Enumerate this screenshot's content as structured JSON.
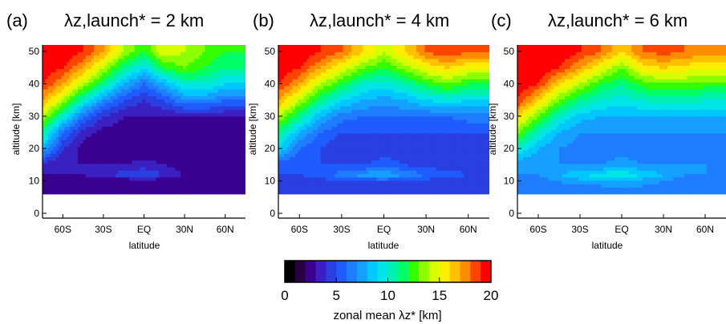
{
  "figure": {
    "colorbar_label": "zonal mean λz* [km]",
    "colorbar": {
      "min": 0,
      "max": 20,
      "step": 1,
      "ticks": [
        "0",
        "5",
        "10",
        "15",
        "20"
      ]
    },
    "colormap": [
      "#000000",
      "#2a0044",
      "#3a0090",
      "#3a20c0",
      "#2a3fe0",
      "#1f5cff",
      "#1f7dff",
      "#15a0ff",
      "#00c8ff",
      "#00e6e6",
      "#00f0b0",
      "#00ff66",
      "#33ff00",
      "#8cff00",
      "#d8ff00",
      "#ffee00",
      "#ffc000",
      "#ff8c00",
      "#ff4400",
      "#ff0000"
    ],
    "panels": [
      {
        "tag": "(a)",
        "title": "λz,launch* = 2 km",
        "xlabel": "latitude",
        "ylabel": "altitude [km]"
      },
      {
        "tag": "(b)",
        "title": "λz,launch* = 4 km",
        "xlabel": "latitude",
        "ylabel": "altitude [km]"
      },
      {
        "tag": "(c)",
        "title": "λz,launch* = 6 km",
        "xlabel": "latitude",
        "ylabel": "altitude [km]"
      }
    ]
  },
  "chart_data": [
    {
      "type": "heatmap",
      "title": "λz,launch* = 2 km",
      "xlabel": "latitude",
      "ylabel": "altitude [km]",
      "xlim": [
        -75,
        75
      ],
      "ylim": [
        0,
        52
      ],
      "xticks": [
        -60,
        -30,
        0,
        30,
        60
      ],
      "xticklabels": [
        "60S",
        "30S",
        "EQ",
        "30N",
        "60N"
      ],
      "yticks": [
        0,
        10,
        20,
        30,
        40,
        50
      ],
      "yticklabels": [
        "0",
        "10",
        "20",
        "30",
        "40",
        "50"
      ],
      "x": [
        -75,
        -60,
        -45,
        -30,
        -15,
        0,
        15,
        30,
        45,
        60,
        75
      ],
      "y": [
        6,
        10,
        12,
        15,
        20,
        25,
        30,
        35,
        40,
        45,
        50
      ],
      "z": [
        [
          2,
          2,
          2,
          2,
          2,
          2,
          2,
          2,
          2,
          2,
          2
        ],
        [
          2,
          2,
          2,
          2,
          2,
          2.5,
          2,
          2,
          2,
          2,
          2
        ],
        [
          3,
          3,
          3,
          4,
          4.5,
          5,
          4,
          3,
          2.5,
          2,
          3
        ],
        [
          3.5,
          3,
          3,
          3,
          3,
          3.5,
          3,
          2.5,
          2,
          2,
          2
        ],
        [
          8,
          4,
          2.5,
          2,
          2,
          2,
          2,
          2,
          2,
          2,
          2
        ],
        [
          11,
          6,
          3.5,
          2.5,
          2.5,
          2.5,
          2.5,
          2,
          2,
          2,
          2
        ],
        [
          14,
          10,
          6,
          4,
          3,
          3,
          3,
          3,
          3,
          3,
          3
        ],
        [
          17,
          14,
          10,
          7,
          5,
          4,
          5,
          7,
          7,
          6,
          6
        ],
        [
          19,
          17,
          14,
          11,
          8,
          6,
          8,
          10,
          10,
          9,
          9
        ],
        [
          20,
          19,
          17,
          14,
          11,
          9,
          12,
          13,
          12,
          11,
          11
        ],
        [
          20,
          20,
          19,
          17,
          14,
          12,
          15,
          14,
          13,
          12,
          12
        ]
      ]
    },
    {
      "type": "heatmap",
      "title": "λz,launch* = 4 km",
      "xlabel": "latitude",
      "ylabel": "altitude [km]",
      "xlim": [
        -75,
        75
      ],
      "ylim": [
        0,
        52
      ],
      "xticks": [
        -60,
        -30,
        0,
        30,
        60
      ],
      "xticklabels": [
        "60S",
        "30S",
        "EQ",
        "30N",
        "60N"
      ],
      "yticks": [
        0,
        10,
        20,
        30,
        40,
        50
      ],
      "yticklabels": [
        "0",
        "10",
        "20",
        "30",
        "40",
        "50"
      ],
      "x": [
        -75,
        -60,
        -45,
        -30,
        -15,
        0,
        15,
        30,
        45,
        60,
        75
      ],
      "y": [
        6,
        10,
        12,
        15,
        20,
        25,
        30,
        35,
        40,
        45,
        50
      ],
      "z": [
        [
          4,
          4,
          4,
          4,
          4,
          4,
          4,
          4,
          4,
          4,
          4
        ],
        [
          4.5,
          4.5,
          4.5,
          5,
          5,
          5,
          5,
          4.5,
          4.5,
          4.5,
          4.5
        ],
        [
          5,
          5,
          5.5,
          6.5,
          7.5,
          8,
          7,
          6,
          5.5,
          5,
          5
        ],
        [
          5,
          5,
          5,
          5,
          5,
          5.5,
          5,
          4.5,
          4.5,
          4.5,
          4.5
        ],
        [
          9,
          6,
          5,
          4,
          4,
          4.5,
          4.5,
          4.5,
          4.5,
          4.5,
          4.5
        ],
        [
          11,
          8,
          6,
          5,
          5,
          5,
          5,
          5,
          5,
          5,
          5
        ],
        [
          14,
          11,
          8,
          6.5,
          6,
          6,
          6,
          6,
          6,
          6.5,
          6.5
        ],
        [
          17,
          14,
          11,
          9,
          8,
          7.5,
          8,
          9,
          9.5,
          9,
          9
        ],
        [
          19,
          17,
          14,
          12,
          10,
          9.5,
          10.5,
          12,
          13,
          12,
          12
        ],
        [
          20,
          19,
          17,
          15,
          13,
          12,
          13.5,
          15,
          16,
          15,
          15
        ],
        [
          20,
          20,
          19,
          18,
          16,
          14,
          16,
          18,
          19,
          18,
          18
        ]
      ]
    },
    {
      "type": "heatmap",
      "title": "λz,launch* = 6 km",
      "xlabel": "latitude",
      "ylabel": "altitude [km]",
      "xlim": [
        -75,
        75
      ],
      "ylim": [
        0,
        52
      ],
      "xticks": [
        -60,
        -30,
        0,
        30,
        60
      ],
      "xticklabels": [
        "60S",
        "30S",
        "EQ",
        "30N",
        "60N"
      ],
      "yticks": [
        0,
        10,
        20,
        30,
        40,
        50
      ],
      "yticklabels": [
        "0",
        "10",
        "20",
        "30",
        "40",
        "50"
      ],
      "x": [
        -75,
        -60,
        -45,
        -30,
        -15,
        0,
        15,
        30,
        45,
        60,
        75
      ],
      "y": [
        6,
        10,
        12,
        15,
        20,
        25,
        30,
        35,
        40,
        45,
        50
      ],
      "z": [
        [
          6,
          6,
          6,
          6,
          6,
          6,
          6,
          6,
          6,
          6,
          6
        ],
        [
          6.5,
          6.5,
          7,
          7.5,
          7.5,
          8,
          7.5,
          7,
          6.5,
          6.5,
          6.5
        ],
        [
          7,
          7,
          8,
          9,
          9.5,
          10,
          9,
          8,
          7,
          7,
          7
        ],
        [
          7,
          7,
          7,
          7,
          7,
          7.5,
          7,
          7,
          7,
          7,
          6.5
        ],
        [
          10,
          8,
          7,
          6.5,
          6.5,
          6.5,
          6.5,
          6.5,
          6.5,
          6.5,
          6.5
        ],
        [
          13,
          10,
          8,
          7,
          7,
          7,
          7,
          7,
          7,
          7,
          7
        ],
        [
          16,
          13,
          10,
          8.5,
          8,
          8,
          8,
          8,
          8,
          8,
          8
        ],
        [
          19,
          16,
          13,
          11,
          10,
          9.5,
          10,
          10.5,
          10.5,
          10,
          10
        ],
        [
          20,
          19,
          16,
          14,
          12,
          11,
          12.5,
          13,
          13,
          12.5,
          12.5
        ],
        [
          20,
          20,
          19,
          17,
          15,
          13,
          15.5,
          16,
          15.5,
          15,
          15
        ],
        [
          20,
          20,
          20,
          19,
          18,
          16,
          18,
          18.5,
          18,
          17.5,
          17.5
        ]
      ]
    }
  ]
}
